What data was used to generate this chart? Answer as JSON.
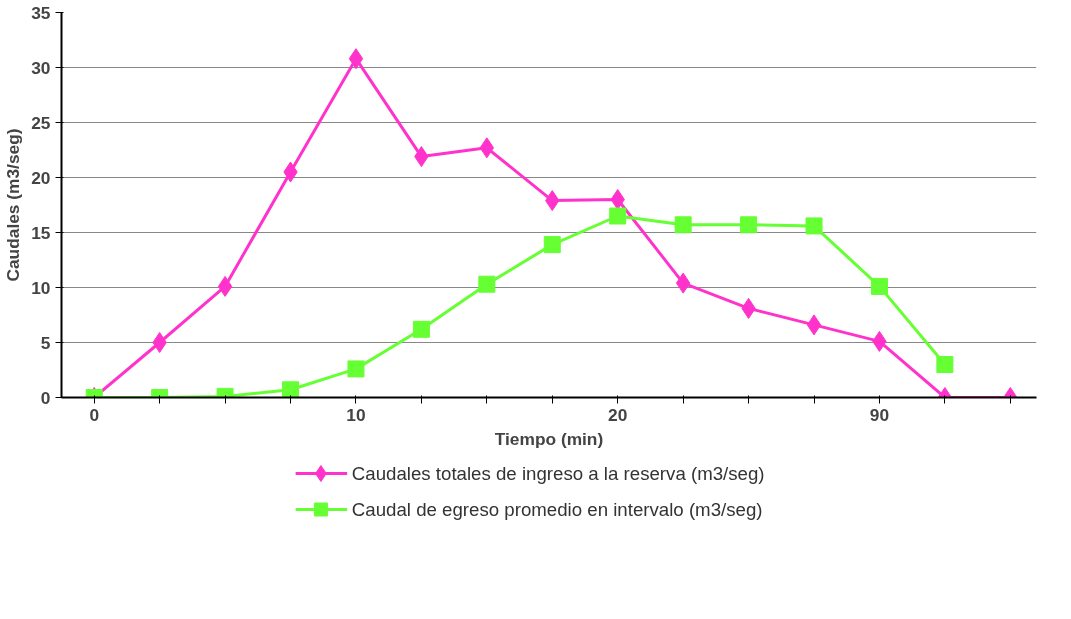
{
  "chart_data": {
    "type": "line",
    "xlabel": "Tiempo (min)",
    "ylabel": "Caudales (m3/seg)",
    "categories": [
      "0",
      null,
      null,
      null,
      "10",
      null,
      null,
      null,
      "20",
      null,
      null,
      null,
      "90",
      null,
      null
    ],
    "series": [
      {
        "name": "Caudales totales de ingreso a la reserva (m3/seg)",
        "color": "#ff33cc",
        "marker": "diamond",
        "values": [
          0,
          5,
          10.1,
          20.5,
          30.8,
          21.9,
          22.7,
          17.9,
          18,
          10.4,
          8.1,
          6.6,
          5.1,
          0,
          0
        ]
      },
      {
        "name": "Caudal de egreso promedio en intervalo (m3/seg)",
        "color": "#66ff33",
        "marker": "square",
        "values": [
          0,
          0,
          0.1,
          0.7,
          2.6,
          6.2,
          10.3,
          13.9,
          16.5,
          15.7,
          15.7,
          15.6,
          10.1,
          3.0,
          null
        ]
      }
    ],
    "ylim": [
      0,
      35
    ],
    "yticks": [
      0,
      5,
      10,
      15,
      20,
      25,
      30,
      35
    ],
    "grid": "y",
    "legend": "bottom",
    "line_style": "solid"
  }
}
